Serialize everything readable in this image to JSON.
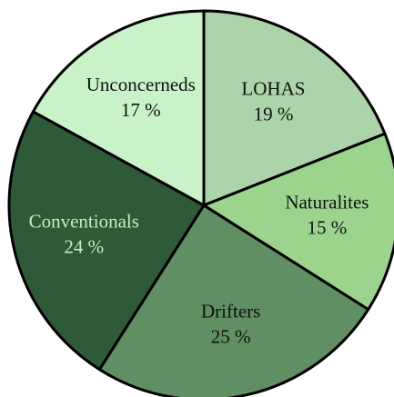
{
  "chart_data": {
    "type": "pie",
    "categories": [
      "LOHAS",
      "Naturalites",
      "Drifters",
      "Conventionals",
      "Unconcerneds"
    ],
    "values": [
      19,
      15,
      25,
      24,
      17
    ],
    "value_labels": [
      "19 %",
      "15 %",
      "25 %",
      "24 %",
      "17 %"
    ],
    "colors": [
      "#acd3aa",
      "#9cd48e",
      "#5f8f62",
      "#2f5a37",
      "#c9f2c9"
    ],
    "label_colors": [
      "#111111",
      "#111111",
      "#111111",
      "#c9ebc4",
      "#111111"
    ]
  }
}
